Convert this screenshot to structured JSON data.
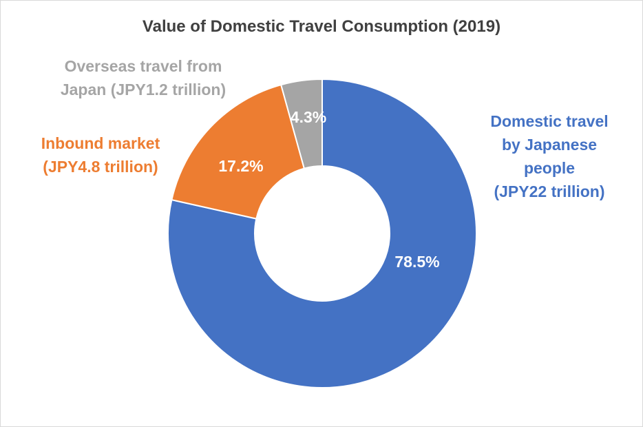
{
  "chart_data": {
    "type": "pie",
    "style": "donut",
    "title": "Value of Domestic Travel Consumption (2019)",
    "slices": [
      {
        "name_lines": [
          "Domestic travel",
          "by Japanese",
          "people",
          "(JPY22 trillion)"
        ],
        "value": 78.5,
        "value_label": "78.5%",
        "color": "#4472c4"
      },
      {
        "name_lines": [
          "Inbound market",
          "(JPY4.8 trillion)"
        ],
        "value": 17.2,
        "value_label": "17.2%",
        "color": "#ed7d31"
      },
      {
        "name_lines": [
          "Overseas travel from",
          "Japan (JPY1.2 trillion)"
        ],
        "value": 4.3,
        "value_label": "4.3%",
        "color": "#a5a5a5"
      }
    ],
    "start_angle": "12 o'clock",
    "direction": "clockwise",
    "legend": "none"
  }
}
